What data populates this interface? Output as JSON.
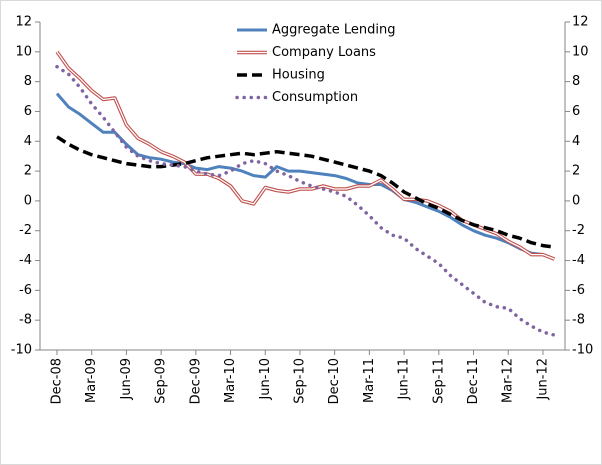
{
  "chart_data": {
    "type": "line",
    "categories": [
      "Dec-08",
      null,
      null,
      "Mar-09",
      null,
      null,
      "Jun-09",
      null,
      null,
      "Sep-09",
      null,
      null,
      "Dec-09",
      null,
      null,
      "Mar-10",
      null,
      null,
      "Jun-10",
      null,
      null,
      "Sep-10",
      null,
      null,
      "Dec-10",
      null,
      null,
      "Mar-11",
      null,
      null,
      "Jun-11",
      null,
      null,
      "Sep-11",
      null,
      null,
      "Dec-11",
      null,
      null,
      "Mar-12",
      null,
      null,
      "Jun-12",
      null
    ],
    "series": [
      {
        "name": "Aggregate Lending",
        "color": "#4f81bd",
        "style": "solid",
        "values": [
          7.2,
          6.3,
          5.8,
          5.2,
          4.6,
          4.6,
          3.8,
          3.1,
          2.9,
          2.8,
          2.6,
          2.5,
          2.2,
          2.1,
          2.3,
          2.2,
          2.0,
          1.7,
          1.6,
          2.3,
          2.0,
          2.0,
          1.9,
          1.8,
          1.7,
          1.5,
          1.2,
          1.1,
          1.1,
          0.7,
          0.1,
          -0.1,
          -0.4,
          -0.7,
          -1.1,
          -1.6,
          -2.0,
          -2.3,
          -2.5,
          -2.8,
          -3.2,
          -3.5,
          -3.6,
          -3.9
        ]
      },
      {
        "name": "Company Loans",
        "color": "#c0504d",
        "style": "double",
        "values": [
          10.0,
          8.9,
          8.2,
          7.4,
          6.8,
          6.9,
          5.1,
          4.2,
          3.8,
          3.3,
          3.0,
          2.6,
          1.8,
          1.8,
          1.5,
          1.0,
          0.0,
          -0.2,
          0.9,
          0.7,
          0.6,
          0.8,
          0.8,
          1.0,
          0.8,
          0.8,
          1.0,
          1.0,
          1.4,
          0.8,
          0.1,
          0.1,
          0.0,
          -0.3,
          -0.7,
          -1.3,
          -1.6,
          -1.9,
          -2.2,
          -2.7,
          -3.1,
          -3.6,
          -3.6,
          -3.9
        ]
      },
      {
        "name": "Housing",
        "color": "#000000",
        "style": "dash",
        "values": [
          4.3,
          3.8,
          3.4,
          3.1,
          2.9,
          2.7,
          2.5,
          2.4,
          2.3,
          2.3,
          2.4,
          2.5,
          2.7,
          2.9,
          3.0,
          3.1,
          3.2,
          3.1,
          3.2,
          3.3,
          3.2,
          3.1,
          3.0,
          2.8,
          2.6,
          2.4,
          2.2,
          2.0,
          1.7,
          1.2,
          0.6,
          0.2,
          -0.2,
          -0.5,
          -0.9,
          -1.3,
          -1.6,
          -1.8,
          -2.0,
          -2.3,
          -2.5,
          -2.8,
          -3.0,
          -3.1
        ]
      },
      {
        "name": "Consumption",
        "color": "#8064a2",
        "style": "dot",
        "values": [
          9.0,
          8.5,
          7.6,
          6.5,
          5.6,
          4.6,
          3.6,
          3.0,
          2.7,
          2.5,
          2.4,
          2.3,
          2.0,
          1.8,
          1.7,
          2.0,
          2.5,
          2.7,
          2.5,
          2.0,
          1.7,
          1.3,
          1.0,
          0.8,
          0.6,
          0.3,
          -0.3,
          -1.0,
          -1.8,
          -2.3,
          -2.5,
          -3.2,
          -3.7,
          -4.2,
          -5.0,
          -5.6,
          -6.2,
          -6.8,
          -7.1,
          -7.2,
          -7.9,
          -8.4,
          -8.8,
          -9.0
        ]
      }
    ],
    "ylim": [
      -10,
      12
    ],
    "yticks": [
      -10,
      -8,
      -6,
      -4,
      -2,
      0,
      2,
      4,
      6,
      8,
      10,
      12
    ],
    "y2lim": [
      -10,
      12
    ],
    "y2ticks": [
      -10,
      -8,
      -6,
      -4,
      -2,
      0,
      2,
      4,
      6,
      8,
      10,
      12
    ],
    "grid": false,
    "legend": "top"
  }
}
